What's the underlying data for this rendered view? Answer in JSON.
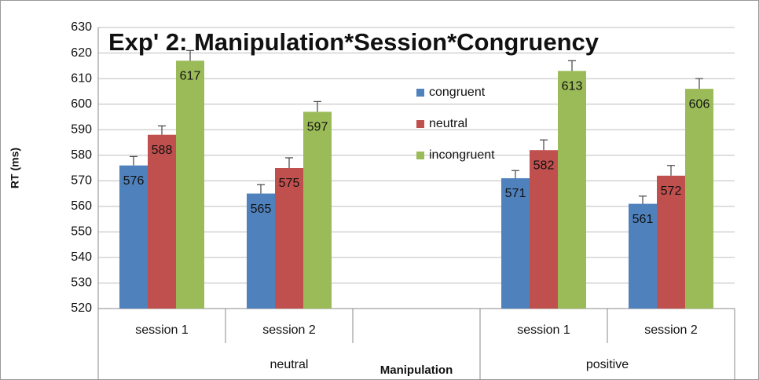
{
  "chart_data": {
    "type": "bar",
    "title": "Exp' 2: Manipulation*Session*Congruency",
    "y_label": "RT (ms)",
    "x_label": "Manipulation",
    "categories": [
      "session 1",
      "session 2",
      null,
      "session 1",
      "session 2"
    ],
    "groups": [
      "neutral",
      "positive"
    ],
    "series": [
      {
        "name": "congruent",
        "color": "#4f81bd",
        "values": [
          576,
          565,
          null,
          571,
          561
        ],
        "errors": [
          3.5,
          3.5,
          null,
          3,
          3
        ]
      },
      {
        "name": "neutral",
        "color": "#c0504d",
        "values": [
          588,
          575,
          null,
          582,
          572
        ],
        "errors": [
          3.5,
          4,
          null,
          4,
          4
        ]
      },
      {
        "name": "incongruent",
        "color": "#9bbb59",
        "values": [
          617,
          597,
          null,
          613,
          606
        ],
        "errors": [
          4,
          4,
          null,
          4,
          4
        ]
      }
    ],
    "ylim": [
      520,
      630
    ],
    "yticks": [
      520,
      530,
      540,
      550,
      560,
      570,
      580,
      590,
      600,
      610,
      620,
      630
    ],
    "grid": true,
    "legend": "center"
  }
}
